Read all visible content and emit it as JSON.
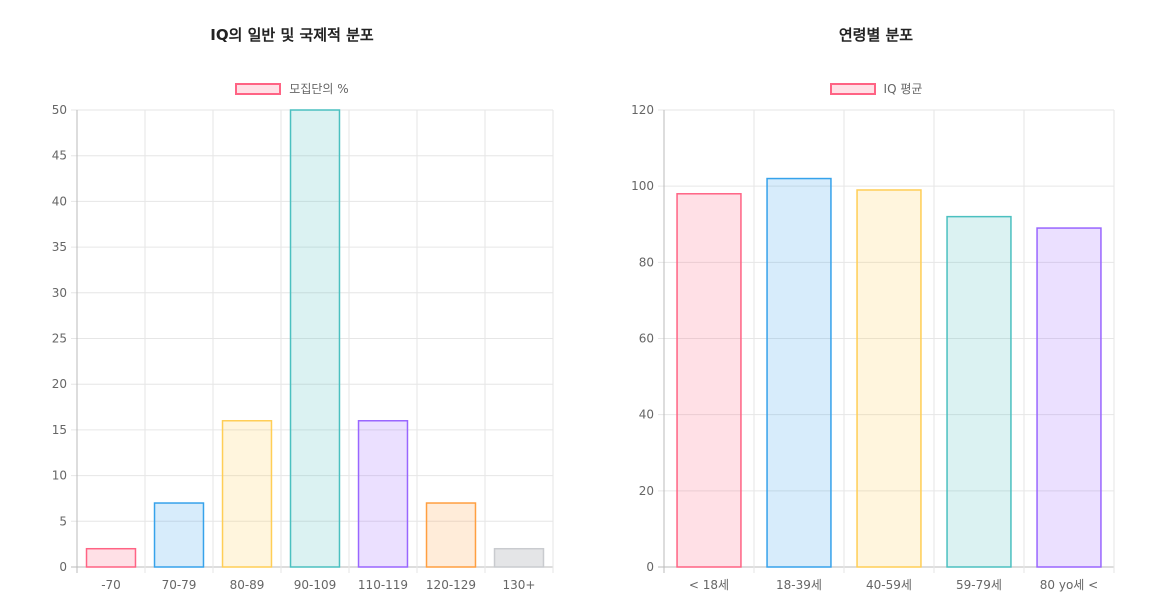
{
  "chart_data": [
    {
      "type": "bar",
      "title": "IQ의 일반 및 국제적 분포",
      "legend": "모집단의 %",
      "legend_position": "top",
      "categories": [
        "-70",
        "70-79",
        "80-89",
        "90-109",
        "110-119",
        "120-129",
        "130+"
      ],
      "values": [
        2,
        7,
        16,
        50,
        16,
        7,
        2
      ],
      "ylim": [
        0,
        50
      ],
      "y_ticks": [
        0,
        5,
        10,
        15,
        20,
        25,
        30,
        35,
        40,
        45,
        50
      ],
      "grid": true,
      "bar_colors": [
        {
          "fill": "rgba(255,99,132,0.2)",
          "stroke": "#ff6384"
        },
        {
          "fill": "rgba(54,162,235,0.2)",
          "stroke": "#36a2eb"
        },
        {
          "fill": "rgba(255,206,86,0.2)",
          "stroke": "#ffce56"
        },
        {
          "fill": "rgba(75,192,192,0.2)",
          "stroke": "#4bc0c0"
        },
        {
          "fill": "rgba(153,102,255,0.2)",
          "stroke": "#9966ff"
        },
        {
          "fill": "rgba(255,159,64,0.2)",
          "stroke": "#ff9f40"
        },
        {
          "fill": "rgba(201,203,207,0.5)",
          "stroke": "#c9cbcf"
        }
      ]
    },
    {
      "type": "bar",
      "title": "연령별 분포",
      "legend": "IQ 평균",
      "legend_position": "top",
      "categories": [
        "< 18세",
        "18-39세",
        "40-59세",
        "59-79세",
        "80 yo세 <"
      ],
      "values": [
        98,
        102,
        99,
        92,
        89
      ],
      "ylim": [
        0,
        120
      ],
      "y_ticks": [
        0,
        20,
        40,
        60,
        80,
        100,
        120
      ],
      "grid": true,
      "bar_colors": [
        {
          "fill": "rgba(255,99,132,0.2)",
          "stroke": "#ff6384"
        },
        {
          "fill": "rgba(54,162,235,0.2)",
          "stroke": "#36a2eb"
        },
        {
          "fill": "rgba(255,206,86,0.2)",
          "stroke": "#ffce56"
        },
        {
          "fill": "rgba(75,192,192,0.2)",
          "stroke": "#4bc0c0"
        },
        {
          "fill": "rgba(153,102,255,0.2)",
          "stroke": "#9966ff"
        }
      ]
    }
  ]
}
